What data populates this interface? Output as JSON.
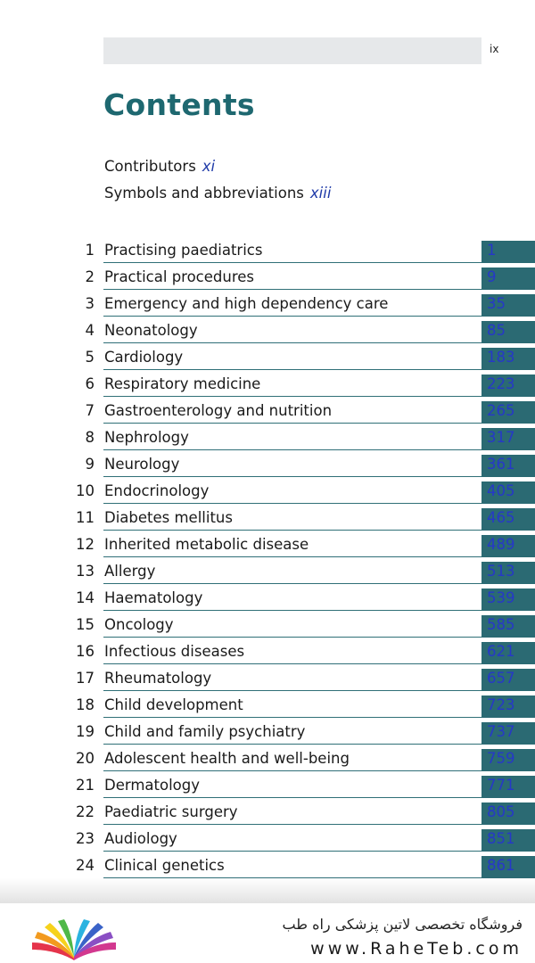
{
  "header": {
    "page_number": "ix"
  },
  "title": "Contents",
  "front_matter": [
    {
      "label": "Contributors",
      "page": "xi"
    },
    {
      "label": "Symbols and abbreviations",
      "page": "xiii"
    }
  ],
  "chapters": [
    {
      "num": "1",
      "title": "Practising paediatrics",
      "page": "1"
    },
    {
      "num": "2",
      "title": "Practical procedures",
      "page": "9"
    },
    {
      "num": "3",
      "title": "Emergency and high dependency care",
      "page": "35"
    },
    {
      "num": "4",
      "title": "Neonatology",
      "page": "85"
    },
    {
      "num": "5",
      "title": "Cardiology",
      "page": "183"
    },
    {
      "num": "6",
      "title": "Respiratory medicine",
      "page": "223"
    },
    {
      "num": "7",
      "title": "Gastroenterology and nutrition",
      "page": "265"
    },
    {
      "num": "8",
      "title": "Nephrology",
      "page": "317"
    },
    {
      "num": "9",
      "title": "Neurology",
      "page": "361"
    },
    {
      "num": "10",
      "title": "Endocrinology",
      "page": "405"
    },
    {
      "num": "11",
      "title": "Diabetes mellitus",
      "page": "465"
    },
    {
      "num": "12",
      "title": "Inherited metabolic disease",
      "page": "489"
    },
    {
      "num": "13",
      "title": "Allergy",
      "page": "513"
    },
    {
      "num": "14",
      "title": "Haematology",
      "page": "539"
    },
    {
      "num": "15",
      "title": "Oncology",
      "page": "585"
    },
    {
      "num": "16",
      "title": "Infectious diseases",
      "page": "621"
    },
    {
      "num": "17",
      "title": "Rheumatology",
      "page": "657"
    },
    {
      "num": "18",
      "title": "Child development",
      "page": "723"
    },
    {
      "num": "19",
      "title": "Child and family psychiatry",
      "page": "737"
    },
    {
      "num": "20",
      "title": "Adolescent health and well-being",
      "page": "759"
    },
    {
      "num": "21",
      "title": "Dermatology",
      "page": "771"
    },
    {
      "num": "22",
      "title": "Paediatric surgery",
      "page": "805"
    },
    {
      "num": "23",
      "title": "Audiology",
      "page": "851"
    },
    {
      "num": "24",
      "title": "Clinical genetics",
      "page": "861"
    }
  ],
  "footer": {
    "store_name": "فروشگاه تخصصی لاتین پزشکی  راه طب",
    "url": "www.RaheTeb.com"
  },
  "colors": {
    "title": "#1e6870",
    "page_box": "#2b6a73",
    "page_link": "#2638c8",
    "header_bar": "#e6e8ea"
  }
}
